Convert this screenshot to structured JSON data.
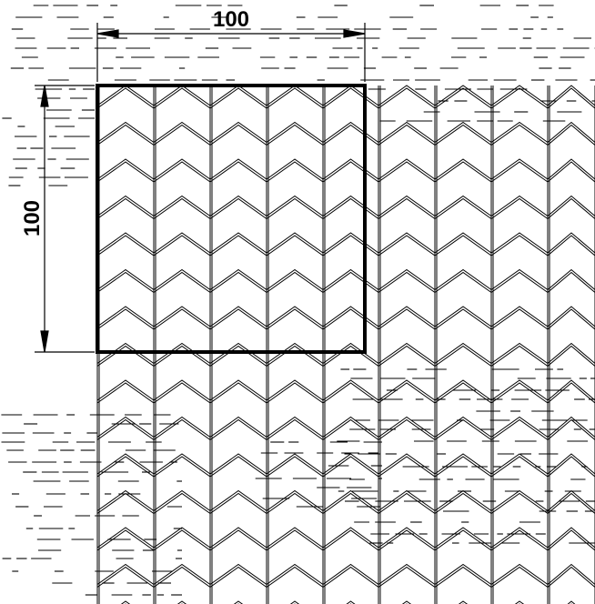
{
  "drawing": {
    "horizontal_dimension": "100",
    "vertical_dimension": "100",
    "pattern": "chevron-herringbone-tiles",
    "line_color": "#000000",
    "background": "#ffffff"
  }
}
